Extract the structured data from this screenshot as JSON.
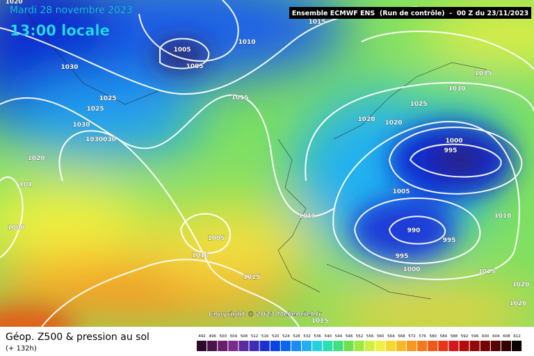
{
  "header": {
    "date": "Mardi 28 novembre 2023",
    "time": "13:00 locale",
    "model": "Ensemble ECMWF ENS  (Run de contrôle)  -  00 Z du 23/11/2023"
  },
  "footer": {
    "title": "Géop. Z500 & pression au sol",
    "lead": "(+ 132h)",
    "copyright": "Copyright © 2023 Meteociel.fr"
  },
  "isobar_labels": [
    "1020",
    "1015",
    "1005",
    "1010",
    "1005",
    "1030",
    "1025",
    "1025",
    "1015",
    "1030",
    "1030030",
    "1020",
    "101",
    "1000",
    "1035",
    "1030",
    "1025",
    "1020",
    "1020",
    "1000",
    "995",
    "1005",
    "1015",
    "990",
    "995",
    "995",
    "1000",
    "1010",
    "1005",
    "1010",
    "1015",
    "1015",
    "1020",
    "1020",
    "1015"
  ],
  "scale": {
    "values": [
      492,
      496,
      500,
      504,
      508,
      512,
      516,
      520,
      524,
      528,
      532,
      536,
      540,
      544,
      548,
      552,
      556,
      560,
      564,
      568,
      572,
      576,
      580,
      584,
      588,
      592,
      596,
      600,
      604,
      608,
      612
    ],
    "colors": [
      "#2b0a2b",
      "#4a1248",
      "#66206a",
      "#7a2e8a",
      "#5a2aa0",
      "#3c2cb8",
      "#1c30d0",
      "#0a44e6",
      "#0a66f0",
      "#1a8cf5",
      "#20b0f0",
      "#26d0e0",
      "#2ae0b0",
      "#40e080",
      "#70e050",
      "#a0e840",
      "#d0f040",
      "#f0f040",
      "#f8d830",
      "#f8b828",
      "#f89820",
      "#f47818",
      "#ee5818",
      "#e43818",
      "#d41818",
      "#b40c0c",
      "#940808",
      "#740404",
      "#540202",
      "#340101",
      "#0a0000"
    ]
  }
}
